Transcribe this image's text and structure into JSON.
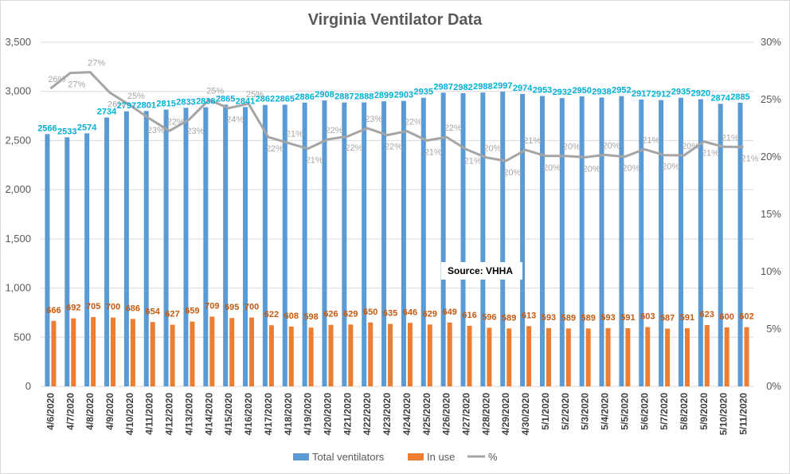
{
  "chart_data": {
    "type": "bar",
    "title": "Virginia Ventilator Data",
    "xlabel": "",
    "ylabel": "",
    "ylim": [
      0,
      3500
    ],
    "y2lim": [
      0,
      0.3
    ],
    "y_ticks": [
      "0",
      "500",
      "1,000",
      "1,500",
      "2,000",
      "2,500",
      "3,000",
      "3,500"
    ],
    "y2_ticks": [
      "0%",
      "5%",
      "10%",
      "15%",
      "20%",
      "25%",
      "30%"
    ],
    "grid": true,
    "legend_position": "bottom",
    "annotation": "Source: VHHA",
    "categories": [
      "4/6/2020",
      "4/7/2020",
      "4/8/2020",
      "4/9/2020",
      "4/10/2020",
      "4/11/2020",
      "4/12/2020",
      "4/13/2020",
      "4/14/2020",
      "4/15/2020",
      "4/16/2020",
      "4/17/2020",
      "4/18/2020",
      "4/19/2020",
      "4/20/2020",
      "4/21/2020",
      "4/22/2020",
      "4/23/2020",
      "4/24/2020",
      "4/25/2020",
      "4/26/2020",
      "4/27/2020",
      "4/28/2020",
      "4/29/2020",
      "4/30/2020",
      "5/1/2020",
      "5/2/2020",
      "5/3/2020",
      "5/4/2020",
      "5/5/2020",
      "5/6/2020",
      "5/7/2020",
      "5/8/2020",
      "5/9/2020",
      "5/10/2020",
      "5/11/2020"
    ],
    "series": [
      {
        "name": "Total ventilators",
        "type": "bar",
        "axis": "left",
        "color": "#5b9bd5",
        "label_color": "#00b0d8",
        "values": [
          2566,
          2533,
          2574,
          2734,
          2797,
          2801,
          2815,
          2833,
          2838,
          2865,
          2841,
          2862,
          2865,
          2886,
          2908,
          2887,
          2888,
          2899,
          2903,
          2935,
          2987,
          2982,
          2988,
          2997,
          2974,
          2953,
          2932,
          2950,
          2938,
          2952,
          2917,
          2912,
          2935,
          2920,
          2874,
          2885
        ]
      },
      {
        "name": "In use",
        "type": "bar",
        "axis": "left",
        "color": "#ed7d31",
        "label_color": "#c55a11",
        "values": [
          666,
          692,
          705,
          700,
          686,
          654,
          627,
          659,
          709,
          695,
          700,
          622,
          608,
          598,
          626,
          629,
          650,
          635,
          646,
          629,
          649,
          616,
          596,
          589,
          613,
          593,
          589,
          589,
          593,
          591,
          603,
          587,
          591,
          623,
          600,
          602
        ]
      },
      {
        "name": "%",
        "type": "line",
        "axis": "right",
        "color": "#a5a5a5",
        "label_color": "#a6a6a6",
        "values": [
          0.2596,
          0.2732,
          0.2739,
          0.256,
          0.2453,
          0.2335,
          0.2227,
          0.2326,
          0.2498,
          0.2426,
          0.2464,
          0.2173,
          0.2122,
          0.2072,
          0.2153,
          0.2179,
          0.2251,
          0.219,
          0.2225,
          0.2143,
          0.2173,
          0.2066,
          0.1995,
          0.1965,
          0.2061,
          0.2008,
          0.2009,
          0.1997,
          0.2018,
          0.2002,
          0.2067,
          0.2016,
          0.2014,
          0.2134,
          0.2088,
          0.2087
        ],
        "labels": [
          "26%",
          "27%",
          "27%",
          "26%",
          "25%",
          "23%",
          "22%",
          "23%",
          "25%",
          "24%",
          "25%",
          "22%",
          "21%",
          "21%",
          "22%",
          "22%",
          "23%",
          "22%",
          "22%",
          "21%",
          "22%",
          "21%",
          "20%",
          "20%",
          "21%",
          "20%",
          "20%",
          "20%",
          "20%",
          "20%",
          "21%",
          "20%",
          "20%",
          "21%",
          "21%",
          "21%"
        ]
      }
    ]
  }
}
